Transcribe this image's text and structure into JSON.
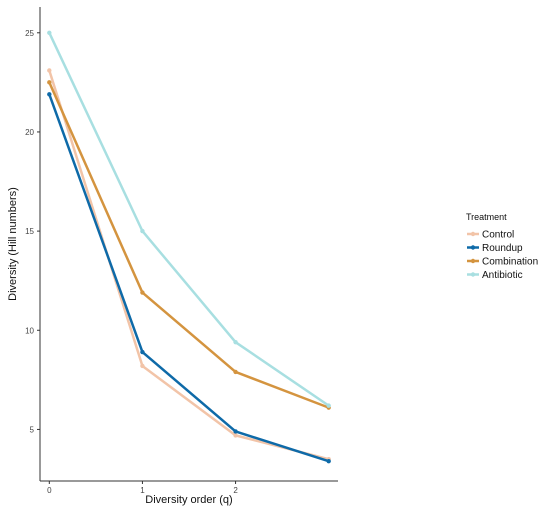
{
  "chart_data": {
    "type": "line",
    "title": "",
    "xlabel": "Diversity order (q)",
    "ylabel": "Diversity (Hill numbers)",
    "x": [
      0,
      1,
      2,
      3
    ],
    "xticks": [
      0,
      1,
      2
    ],
    "xlim": [
      -0.1,
      3.1
    ],
    "yticks": [
      5,
      10,
      15,
      20,
      25
    ],
    "ylim": [
      2.4,
      26.3
    ],
    "grid": false,
    "legend": {
      "title": "Treatment",
      "position": "right"
    },
    "series": [
      {
        "name": "Control",
        "color": "#f2c4a8",
        "values": [
          23.1,
          8.2,
          4.7,
          3.5
        ]
      },
      {
        "name": "Roundup",
        "color": "#0e6aa8",
        "values": [
          21.9,
          8.9,
          4.9,
          3.4
        ]
      },
      {
        "name": "Combination",
        "color": "#d4943f",
        "values": [
          22.5,
          11.9,
          7.9,
          6.1
        ]
      },
      {
        "name": "Antibiotic",
        "color": "#a8dfe1",
        "values": [
          25.0,
          15.0,
          9.4,
          6.2
        ]
      }
    ]
  }
}
